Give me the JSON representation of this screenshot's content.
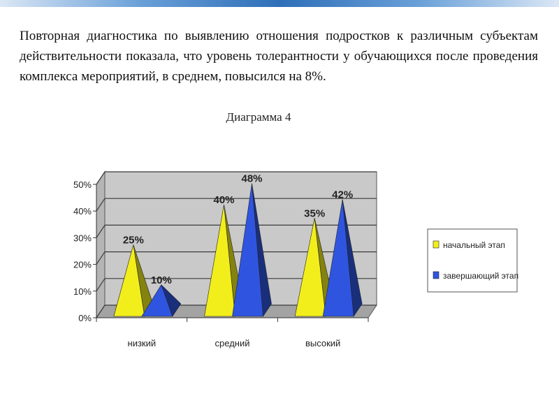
{
  "text": {
    "paragraph": "Повторная диагностика по выявлению отношения подростков к различным субъектам действительности показала, что уровень толерантности у обучающихся после проведения комплекса мероприятий, в среднем, повысился на 8%.",
    "caption": "Диаграмма 4"
  },
  "colors": {
    "series1": "#f2ee1c",
    "series2": "#2f55e0",
    "wall": "#c9c9c9",
    "floor": "#a3a3a3"
  },
  "chart_data": {
    "type": "bar",
    "shape": "pyramid-3d",
    "categories": [
      "низкий",
      "средний",
      "высокий"
    ],
    "series": [
      {
        "name": "начальный этап",
        "values": [
          25,
          40,
          35
        ],
        "labels": [
          "25%",
          "40%",
          "35%"
        ]
      },
      {
        "name": "завершающий этап",
        "values": [
          10,
          48,
          42
        ],
        "labels": [
          "10%",
          "48%",
          "42%"
        ]
      }
    ],
    "ylim": [
      0,
      50
    ],
    "yticks": [
      "0%",
      "10%",
      "20%",
      "30%",
      "40%",
      "50%"
    ],
    "grid": true,
    "legend": "right"
  }
}
